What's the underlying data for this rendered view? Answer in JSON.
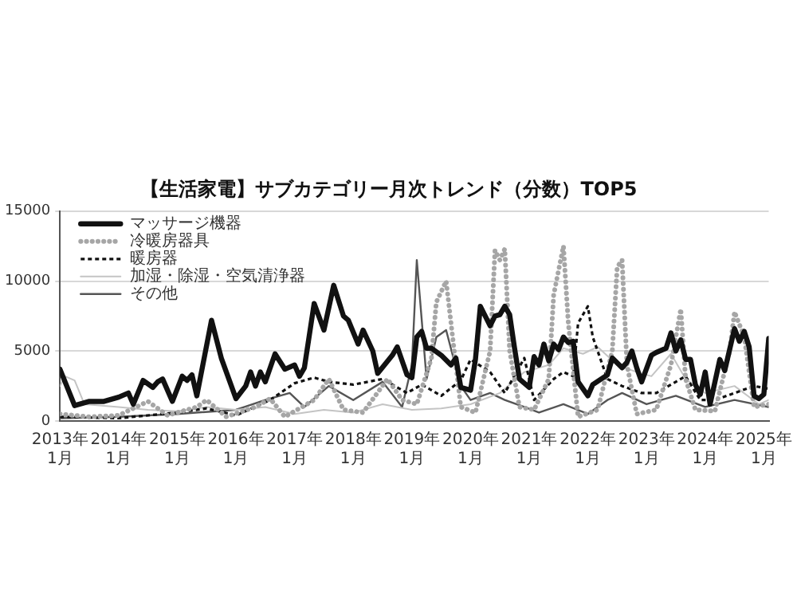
{
  "chart_data": {
    "type": "line",
    "title": "【生活家電】サブカテゴリー月次トレンド（分数）TOP5",
    "xlim": [
      "2013-01",
      "2025-02"
    ],
    "xticks": [
      {
        "value": "2013-01",
        "label": "2013年\n1月"
      },
      {
        "value": "2014-01",
        "label": "2014年\n1月"
      },
      {
        "value": "2015-01",
        "label": "2015年\n1月"
      },
      {
        "value": "2016-01",
        "label": "2016年\n1月"
      },
      {
        "value": "2017-01",
        "label": "2017年\n1月"
      },
      {
        "value": "2018-01",
        "label": "2018年\n1月"
      },
      {
        "value": "2019-01",
        "label": "2019年\n1月"
      },
      {
        "value": "2020-01",
        "label": "2020年\n1月"
      },
      {
        "value": "2021-01",
        "label": "2021年\n1月"
      },
      {
        "value": "2022-01",
        "label": "2022年\n1月"
      },
      {
        "value": "2023-01",
        "label": "2023年\n1月"
      },
      {
        "value": "2024-01",
        "label": "2024年\n1月"
      },
      {
        "value": "2025-01",
        "label": "2025年\n1月"
      }
    ],
    "ylim": [
      0,
      15000
    ],
    "yticks": [
      0,
      5000,
      10000,
      15000
    ],
    "grid": "y",
    "legend": "top left",
    "marker": "none",
    "series": [
      {
        "name": "マッサージ機器",
        "color": "#111111",
        "line_style": "solid",
        "x": [
          "2013-01",
          "2013-04",
          "2013-07",
          "2013-10",
          "2014-01",
          "2014-03",
          "2014-04",
          "2014-06",
          "2014-08",
          "2014-09",
          "2014-10",
          "2014-12",
          "2015-02",
          "2015-03",
          "2015-04",
          "2015-05",
          "2015-08",
          "2015-10",
          "2016-01",
          "2016-03",
          "2016-04",
          "2016-05",
          "2016-06",
          "2016-07",
          "2016-09",
          "2016-11",
          "2017-01",
          "2017-02",
          "2017-03",
          "2017-05",
          "2017-07",
          "2017-09",
          "2017-11",
          "2017-12",
          "2018-02",
          "2018-03",
          "2018-05",
          "2018-06",
          "2018-09",
          "2018-10",
          "2018-12",
          "2019-01",
          "2019-02",
          "2019-03",
          "2019-04",
          "2019-05",
          "2019-07",
          "2019-09",
          "2019-10",
          "2019-11",
          "2020-01",
          "2020-02",
          "2020-03",
          "2020-05",
          "2020-06",
          "2020-07",
          "2020-08",
          "2020-09",
          "2020-10",
          "2020-11",
          "2021-01",
          "2021-02",
          "2021-03",
          "2021-04",
          "2021-05",
          "2021-06",
          "2021-07",
          "2021-08",
          "2021-09",
          "2021-10",
          "2021-11",
          "2022-01",
          "2022-02",
          "2022-05",
          "2022-06",
          "2022-08",
          "2022-09",
          "2022-10",
          "2022-11",
          "2022-12",
          "2023-02",
          "2023-03",
          "2023-05",
          "2023-06",
          "2023-07",
          "2023-08",
          "2023-09",
          "2023-10",
          "2023-11",
          "2023-12",
          "2024-01",
          "2024-02",
          "2024-04",
          "2024-05",
          "2024-07",
          "2024-08",
          "2024-09",
          "2024-10",
          "2024-11",
          "2024-12",
          "2025-01",
          "2025-02"
        ],
        "values": [
          3700,
          1100,
          1400,
          1400,
          1700,
          2000,
          1200,
          2900,
          2400,
          2800,
          3000,
          1400,
          3200,
          2900,
          3300,
          1800,
          7200,
          4500,
          1600,
          2500,
          3500,
          2500,
          3500,
          2800,
          4800,
          3700,
          4000,
          3200,
          3800,
          8400,
          6500,
          9700,
          7500,
          7200,
          5500,
          6500,
          5000,
          3400,
          4700,
          5300,
          3300,
          3100,
          6000,
          6400,
          5200,
          5200,
          4700,
          4000,
          4500,
          2400,
          2200,
          4400,
          8200,
          6800,
          7500,
          7600,
          8200,
          7600,
          5200,
          3000,
          2400,
          4600,
          4000,
          5500,
          4300,
          5500,
          5100,
          6000,
          5600,
          5700,
          2800,
          1800,
          2600,
          3300,
          4500,
          3800,
          4200,
          5000,
          3800,
          2800,
          4700,
          4900,
          5200,
          6300,
          5000,
          5800,
          4400,
          4400,
          2600,
          1900,
          3500,
          1200,
          4400,
          3600,
          6600,
          5700,
          6400,
          5300,
          1800,
          1600,
          1900,
          5900
        ]
      },
      {
        "name": "冷暖房器具",
        "color": "#a6a6a6",
        "line_style": "dotted",
        "x": [
          "2013-01",
          "2013-07",
          "2014-01",
          "2014-07",
          "2014-11",
          "2015-05",
          "2015-07",
          "2015-11",
          "2016-05",
          "2016-08",
          "2016-11",
          "2017-05",
          "2017-08",
          "2017-11",
          "2018-03",
          "2018-08",
          "2018-11",
          "2019-02",
          "2019-05",
          "2019-06",
          "2019-08",
          "2019-09",
          "2019-11",
          "2020-02",
          "2020-05",
          "2020-06",
          "2020-07",
          "2020-08",
          "2020-09",
          "2020-11",
          "2021-02",
          "2021-05",
          "2021-06",
          "2021-08",
          "2021-09",
          "2021-11",
          "2022-03",
          "2022-06",
          "2022-07",
          "2022-08",
          "2022-09",
          "2022-11",
          "2023-03",
          "2023-06",
          "2023-08",
          "2023-09",
          "2023-11",
          "2024-03",
          "2024-06",
          "2024-07",
          "2024-09",
          "2024-11",
          "2025-02"
        ],
        "values": [
          500,
          300,
          400,
          1400,
          400,
          1000,
          1500,
          300,
          1000,
          1600,
          300,
          1500,
          3000,
          800,
          600,
          3000,
          1500,
          1200,
          4500,
          8500,
          10000,
          7000,
          1000,
          600,
          5000,
          12200,
          11500,
          12300,
          5000,
          1000,
          800,
          3000,
          9000,
          12500,
          7000,
          300,
          800,
          5000,
          11000,
          11500,
          4000,
          500,
          800,
          4000,
          8000,
          3000,
          800,
          700,
          5000,
          7800,
          6000,
          1000,
          1200
        ]
      },
      {
        "name": "暖房器",
        "color": "#111111",
        "line_style": "dashed",
        "x": [
          "2013-01",
          "2014-01",
          "2015-01",
          "2015-07",
          "2016-01",
          "2016-08",
          "2017-01",
          "2017-05",
          "2017-08",
          "2018-01",
          "2018-07",
          "2018-12",
          "2019-03",
          "2019-07",
          "2019-11",
          "2020-01",
          "2020-05",
          "2020-08",
          "2020-12",
          "2021-02",
          "2021-06",
          "2021-08",
          "2021-10",
          "2021-11",
          "2022-01",
          "2022-02",
          "2022-05",
          "2022-08",
          "2022-12",
          "2023-03",
          "2023-07",
          "2023-09",
          "2023-12",
          "2024-03",
          "2024-07",
          "2024-11",
          "2025-02"
        ],
        "values": [
          300,
          200,
          600,
          900,
          400,
          1500,
          2700,
          3100,
          2800,
          2600,
          3000,
          2000,
          2600,
          1800,
          2900,
          4400,
          3500,
          2000,
          4500,
          1500,
          3000,
          3500,
          3200,
          7000,
          8200,
          6000,
          3000,
          2500,
          2000,
          2000,
          2800,
          3200,
          1500,
          1500,
          2000,
          2500,
          2300
        ]
      },
      {
        "name": "加湿・除湿・空気清浄器",
        "color": "#c4c4c4",
        "line_style": "solid",
        "x": [
          "2013-01",
          "2013-02",
          "2013-04",
          "2013-06",
          "2014-01",
          "2014-07",
          "2015-01",
          "2015-07",
          "2016-01",
          "2016-07",
          "2017-01",
          "2017-07",
          "2018-01",
          "2018-07",
          "2019-01",
          "2019-07",
          "2020-01",
          "2020-07",
          "2020-12",
          "2021-05",
          "2021-08",
          "2021-12",
          "2022-03",
          "2022-07",
          "2022-11",
          "2023-02",
          "2023-06",
          "2023-09",
          "2024-01",
          "2024-07",
          "2024-12",
          "2025-02"
        ],
        "values": [
          2500,
          3200,
          2900,
          1200,
          1000,
          800,
          700,
          1000,
          800,
          1000,
          500,
          800,
          600,
          1200,
          800,
          900,
          1200,
          2000,
          3500,
          4000,
          5200,
          4800,
          5300,
          4000,
          3500,
          3200,
          4800,
          3000,
          2000,
          2500,
          1200,
          1500
        ]
      },
      {
        "name": "その他",
        "color": "#555555",
        "line_style": "solid",
        "x": [
          "2013-01",
          "2014-01",
          "2015-01",
          "2016-01",
          "2016-07",
          "2016-12",
          "2017-03",
          "2017-08",
          "2018-01",
          "2018-07",
          "2018-11",
          "2019-01",
          "2019-02",
          "2019-04",
          "2019-06",
          "2019-08",
          "2019-11",
          "2020-01",
          "2020-05",
          "2020-08",
          "2020-12",
          "2021-03",
          "2021-08",
          "2022-01",
          "2022-05",
          "2022-08",
          "2023-01",
          "2023-07",
          "2024-01",
          "2024-07",
          "2025-02"
        ],
        "values": [
          200,
          300,
          500,
          800,
          1500,
          2000,
          1000,
          2500,
          1500,
          2800,
          1000,
          4000,
          11500,
          3000,
          6000,
          6500,
          2500,
          1500,
          2000,
          1500,
          1000,
          600,
          1200,
          500,
          1500,
          2000,
          1200,
          1800,
          1000,
          1500,
          1000
        ]
      }
    ]
  }
}
